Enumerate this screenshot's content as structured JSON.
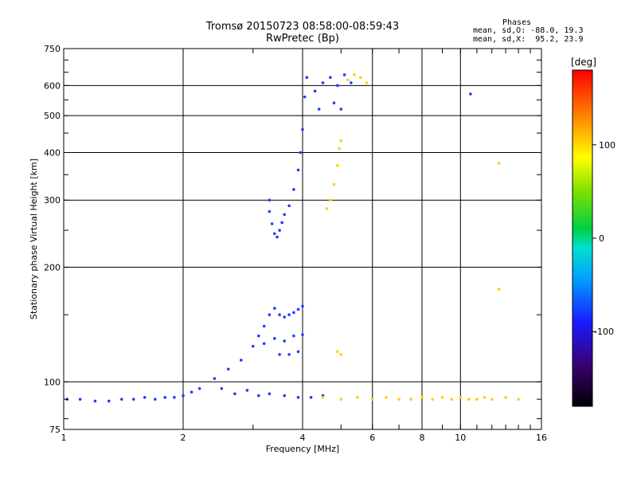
{
  "chart_data": {
    "type": "scatter",
    "title": "Tromsø 20150723 08:58:00-08:59:43",
    "subtitle": "RwPretec (Bp)",
    "xlabel": "Frequency [MHz]",
    "ylabel": "Stationary phase Virtual Height [km]",
    "x_scale": "log",
    "y_scale": "log",
    "xlim": [
      1,
      16
    ],
    "ylim": [
      75,
      750
    ],
    "x_ticks": [
      1,
      2,
      4,
      6,
      8,
      10,
      16
    ],
    "x_tick_labels": [
      "1",
      "2",
      "4",
      "6",
      "8",
      "10",
      "16"
    ],
    "y_ticks": [
      75,
      100,
      200,
      300,
      400,
      500,
      600,
      750
    ],
    "y_tick_labels": [
      "75",
      "100",
      "200",
      "300",
      "400",
      "500",
      "600",
      "750"
    ],
    "grid": true,
    "annotation": {
      "heading": "Phases",
      "line1": "mean, sd,O: -88.0, 19.3",
      "line2": "mean, sd,X:  95.2, 23.9"
    },
    "colorbar": {
      "label": "[deg]",
      "range": [
        -180,
        180
      ],
      "ticks": [
        100,
        0,
        -100
      ],
      "tick_labels": [
        "100",
        "0",
        "-100"
      ]
    },
    "series": [
      {
        "name": "O",
        "color": "#1e3cff",
        "points": [
          [
            1.02,
            90
          ],
          [
            1.1,
            90
          ],
          [
            1.2,
            89
          ],
          [
            1.3,
            89
          ],
          [
            1.4,
            90
          ],
          [
            1.5,
            90
          ],
          [
            1.6,
            91
          ],
          [
            1.7,
            90
          ],
          [
            1.8,
            91
          ],
          [
            1.9,
            91
          ],
          [
            2.0,
            92
          ],
          [
            2.1,
            94
          ],
          [
            2.2,
            96
          ],
          [
            2.4,
            102
          ],
          [
            2.6,
            108
          ],
          [
            2.8,
            114
          ],
          [
            3.0,
            124
          ],
          [
            3.1,
            132
          ],
          [
            3.2,
            140
          ],
          [
            3.3,
            150
          ],
          [
            3.4,
            156
          ],
          [
            3.5,
            150
          ],
          [
            3.6,
            148
          ],
          [
            3.7,
            150
          ],
          [
            3.8,
            152
          ],
          [
            3.9,
            155
          ],
          [
            4.0,
            158
          ],
          [
            3.2,
            126
          ],
          [
            3.4,
            130
          ],
          [
            3.6,
            128
          ],
          [
            3.8,
            132
          ],
          [
            4.0,
            133
          ],
          [
            3.5,
            118
          ],
          [
            3.7,
            118
          ],
          [
            3.9,
            120
          ],
          [
            3.3,
            300
          ],
          [
            3.3,
            280
          ],
          [
            3.35,
            260
          ],
          [
            3.4,
            245
          ],
          [
            3.45,
            240
          ],
          [
            3.5,
            250
          ],
          [
            3.55,
            262
          ],
          [
            3.6,
            275
          ],
          [
            3.7,
            290
          ],
          [
            3.8,
            320
          ],
          [
            3.9,
            360
          ],
          [
            3.95,
            400
          ],
          [
            4.0,
            460
          ],
          [
            4.05,
            560
          ],
          [
            4.1,
            630
          ],
          [
            4.3,
            580
          ],
          [
            4.5,
            610
          ],
          [
            4.7,
            630
          ],
          [
            4.9,
            600
          ],
          [
            5.1,
            640
          ],
          [
            5.3,
            610
          ],
          [
            4.4,
            520
          ],
          [
            4.8,
            540
          ],
          [
            5.0,
            520
          ],
          [
            2.5,
            96
          ],
          [
            2.7,
            93
          ],
          [
            2.9,
            95
          ],
          [
            3.1,
            92
          ],
          [
            3.3,
            93
          ],
          [
            3.6,
            92
          ],
          [
            3.9,
            91
          ],
          [
            4.2,
            91
          ],
          [
            4.5,
            92
          ],
          [
            10.6,
            570
          ]
        ]
      },
      {
        "name": "X",
        "color": "#ffd000",
        "points": [
          [
            4.6,
            285
          ],
          [
            4.7,
            300
          ],
          [
            4.8,
            330
          ],
          [
            4.9,
            370
          ],
          [
            4.95,
            410
          ],
          [
            5.0,
            430
          ],
          [
            5.2,
            620
          ],
          [
            5.4,
            640
          ],
          [
            5.6,
            630
          ],
          [
            5.8,
            610
          ],
          [
            4.9,
            120
          ],
          [
            5.0,
            118
          ],
          [
            4.5,
            91
          ],
          [
            5.0,
            90
          ],
          [
            5.5,
            91
          ],
          [
            6.0,
            90
          ],
          [
            6.5,
            91
          ],
          [
            7.0,
            90
          ],
          [
            7.5,
            90
          ],
          [
            8.0,
            91
          ],
          [
            8.5,
            90
          ],
          [
            9.0,
            91
          ],
          [
            9.5,
            90
          ],
          [
            10.0,
            91
          ],
          [
            10.5,
            90
          ],
          [
            11.0,
            90
          ],
          [
            11.5,
            91
          ],
          [
            12.0,
            90
          ],
          [
            13.0,
            91
          ],
          [
            14.0,
            90
          ],
          [
            12.5,
            375
          ],
          [
            12.5,
            175
          ]
        ]
      }
    ]
  }
}
